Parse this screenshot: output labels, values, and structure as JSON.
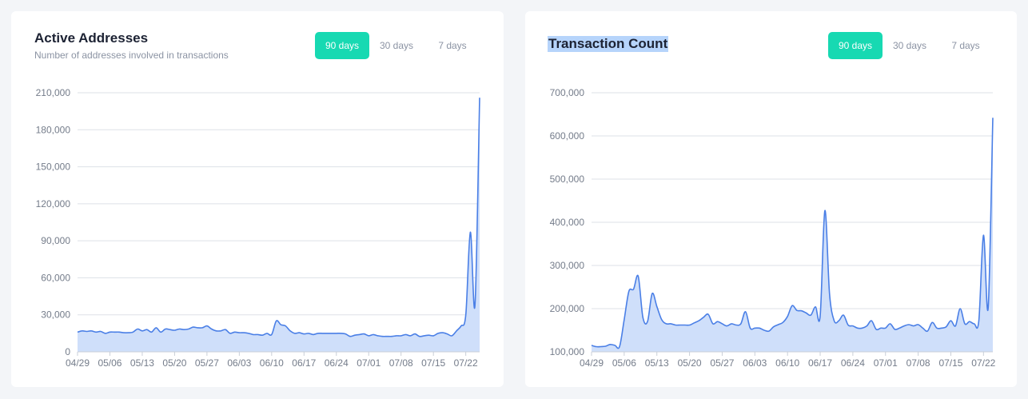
{
  "panels": [
    {
      "title": "Active Addresses",
      "subtitle": "Number of addresses involved in transactions",
      "title_selected": false,
      "ranges": [
        "90 days",
        "30 days",
        "7 days"
      ],
      "active_range": 0
    },
    {
      "title": "Transaction Count",
      "subtitle": "",
      "title_selected": true,
      "ranges": [
        "90 days",
        "30 days",
        "7 days"
      ],
      "active_range": 0
    }
  ],
  "colors": {
    "line": "#4a7fe6",
    "fill": "#cfdffa",
    "grid": "#dde1e7",
    "accent": "#17d9b2"
  },
  "chart_data": [
    {
      "type": "area",
      "title": "Active Addresses",
      "xlabel": "",
      "ylabel": "",
      "ylim": [
        0,
        210000
      ],
      "yticks": [
        0,
        30000,
        60000,
        90000,
        120000,
        150000,
        180000,
        210000
      ],
      "ytick_labels": [
        "0",
        "30,000",
        "60,000",
        "90,000",
        "120,000",
        "150,000",
        "180,000",
        "210,000"
      ],
      "xtick_labels": [
        "04/29",
        "05/06",
        "05/13",
        "05/20",
        "05/27",
        "06/03",
        "06/10",
        "06/17",
        "06/24",
        "07/01",
        "07/08",
        "07/15",
        "07/22"
      ],
      "xtick_indices": [
        0,
        7,
        14,
        21,
        28,
        35,
        42,
        49,
        56,
        63,
        70,
        77,
        84
      ],
      "grid": true,
      "series": [
        {
          "values": [
            16000,
            17000,
            16500,
            17000,
            16000,
            16500,
            15000,
            16000,
            16000,
            16000,
            15500,
            15500,
            16000,
            18500,
            17000,
            18000,
            16000,
            19500,
            16000,
            18500,
            18000,
            17500,
            18500,
            18000,
            18500,
            20000,
            19500,
            19500,
            21000,
            18500,
            17000,
            17000,
            18000,
            15000,
            16000,
            15500,
            15500,
            15000,
            14000,
            14000,
            13500,
            15000,
            14000,
            25000,
            22000,
            21000,
            17000,
            15000,
            15500,
            14500,
            15000,
            14000,
            15000,
            15000,
            15000,
            15000,
            15000,
            15000,
            14500,
            12500,
            13500,
            14000,
            14500,
            13000,
            14000,
            13000,
            12500,
            12500,
            12500,
            13000,
            13000,
            14000,
            13000,
            14500,
            12500,
            13000,
            13500,
            13000,
            15000,
            15500,
            14500,
            13000,
            17000,
            21000,
            30000,
            97000,
            38000,
            206000
          ]
        }
      ]
    },
    {
      "type": "area",
      "title": "Transaction Count",
      "xlabel": "",
      "ylabel": "",
      "ylim": [
        100000,
        700000
      ],
      "yticks": [
        100000,
        200000,
        300000,
        400000,
        500000,
        600000,
        700000
      ],
      "ytick_labels": [
        "100,000",
        "200,000",
        "300,000",
        "400,000",
        "500,000",
        "600,000",
        "700,000"
      ],
      "xtick_labels": [
        "04/29",
        "05/06",
        "05/13",
        "05/20",
        "05/27",
        "06/03",
        "06/10",
        "06/17",
        "06/24",
        "07/01",
        "07/08",
        "07/15",
        "07/22"
      ],
      "xtick_indices": [
        0,
        7,
        14,
        21,
        28,
        35,
        42,
        49,
        56,
        63,
        70,
        77,
        84
      ],
      "grid": true,
      "series": [
        {
          "values": [
            115000,
            112000,
            112000,
            113000,
            117000,
            115000,
            112000,
            175000,
            240000,
            245000,
            275000,
            180000,
            170000,
            235000,
            205000,
            175000,
            165000,
            165000,
            162000,
            162000,
            162000,
            162000,
            167000,
            172000,
            180000,
            187000,
            165000,
            170000,
            165000,
            160000,
            165000,
            162000,
            165000,
            193000,
            155000,
            155000,
            155000,
            150000,
            148000,
            158000,
            163000,
            168000,
            182000,
            207000,
            196000,
            195000,
            190000,
            185000,
            204000,
            183000,
            427000,
            235000,
            172000,
            172000,
            185000,
            162000,
            160000,
            155000,
            155000,
            160000,
            172000,
            152000,
            155000,
            155000,
            165000,
            152000,
            155000,
            160000,
            163000,
            160000,
            163000,
            155000,
            148000,
            168000,
            155000,
            155000,
            158000,
            172000,
            160000,
            200000,
            165000,
            170000,
            165000,
            172000,
            370000,
            202000,
            642000
          ]
        }
      ]
    }
  ]
}
